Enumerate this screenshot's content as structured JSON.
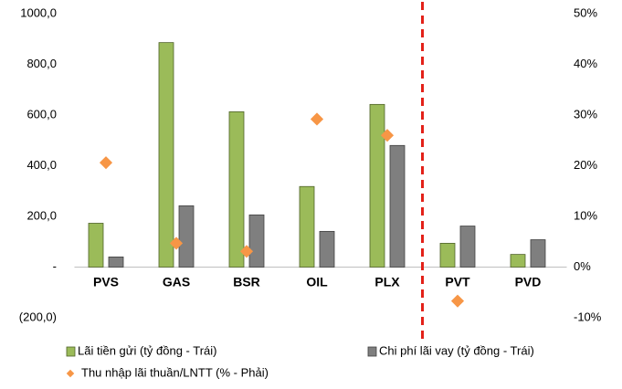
{
  "chart_data": {
    "type": "bar",
    "categories": [
      "PVS",
      "GAS",
      "BSR",
      "OIL",
      "PLX",
      "PVT",
      "PVD"
    ],
    "series": [
      {
        "name": "Lãi tiền gửi (tỷ đồng - Trái)",
        "color": "#9bbb59",
        "values": [
          173,
          886,
          613,
          318,
          642,
          94,
          50
        ]
      },
      {
        "name": "Chi phí lãi vay (tỷ đồng - Trái)",
        "color": "#7f7f7f",
        "values": [
          40,
          242,
          206,
          141,
          480,
          162,
          108
        ]
      },
      {
        "name": "Thu nhập lãi thuần/LNTT (% - Phải)",
        "color": "#f79646",
        "type": "scatter",
        "axis": "y2",
        "values": [
          20.6,
          4.7,
          3.1,
          29.2,
          26.0,
          -6.7,
          null
        ]
      }
    ],
    "ylim": [
      -200,
      1000
    ],
    "yticks": [
      {
        "value": 1000,
        "label": "1000,0"
      },
      {
        "value": 800,
        "label": "800,0"
      },
      {
        "value": 600,
        "label": "600,0"
      },
      {
        "value": 400,
        "label": "400,0"
      },
      {
        "value": 200,
        "label": "200,0"
      },
      {
        "value": 0,
        "label": "-"
      },
      {
        "value": -200,
        "label": "(200,0)"
      }
    ],
    "y2lim": [
      -10,
      50
    ],
    "y2ticks": [
      {
        "value": 50,
        "label": "50%"
      },
      {
        "value": 40,
        "label": "40%"
      },
      {
        "value": 30,
        "label": "30%"
      },
      {
        "value": 20,
        "label": "20%"
      },
      {
        "value": 10,
        "label": "10%"
      },
      {
        "value": 0,
        "label": "0%"
      },
      {
        "value": -10,
        "label": "-10%"
      }
    ],
    "grid": false
  }
}
